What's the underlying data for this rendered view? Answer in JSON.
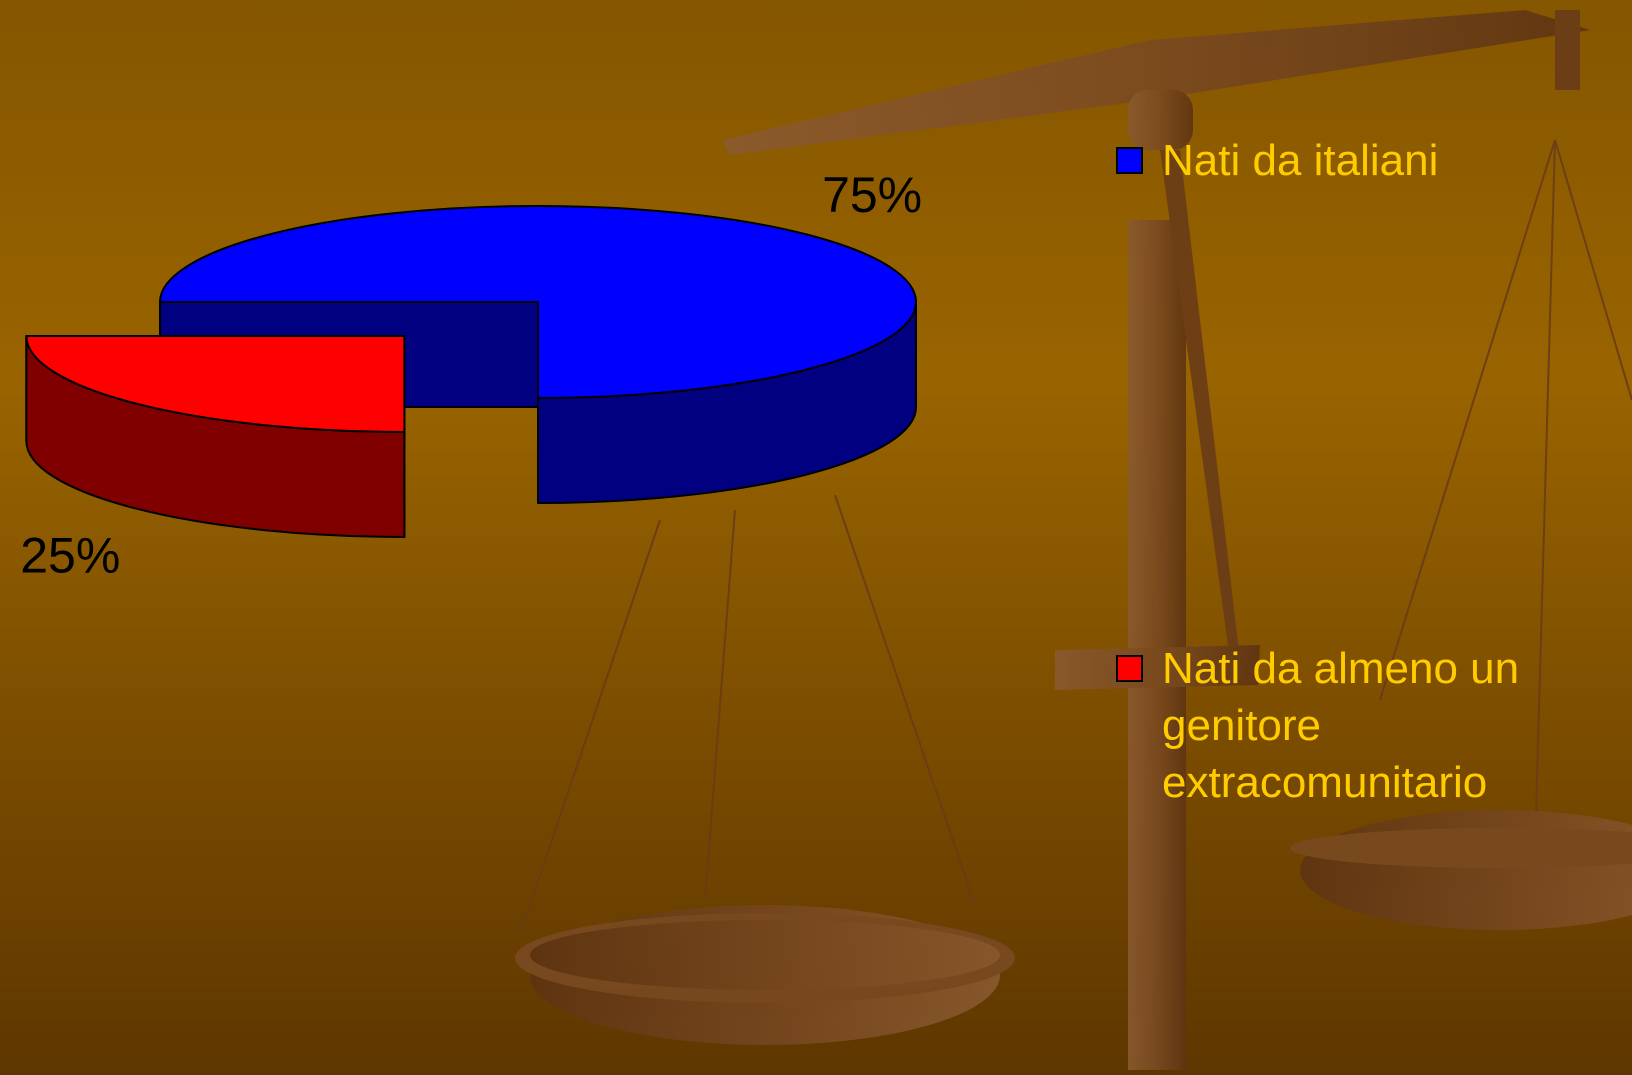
{
  "chart_data": {
    "type": "pie",
    "categories": [
      "Nati da italiani",
      "Nati da almeno un genitore extracomunitario"
    ],
    "values": [
      75,
      25
    ],
    "value_labels": [
      "75%",
      "25%"
    ],
    "colors": [
      "#0000ff",
      "#ff0000"
    ],
    "legend": "right"
  }
}
